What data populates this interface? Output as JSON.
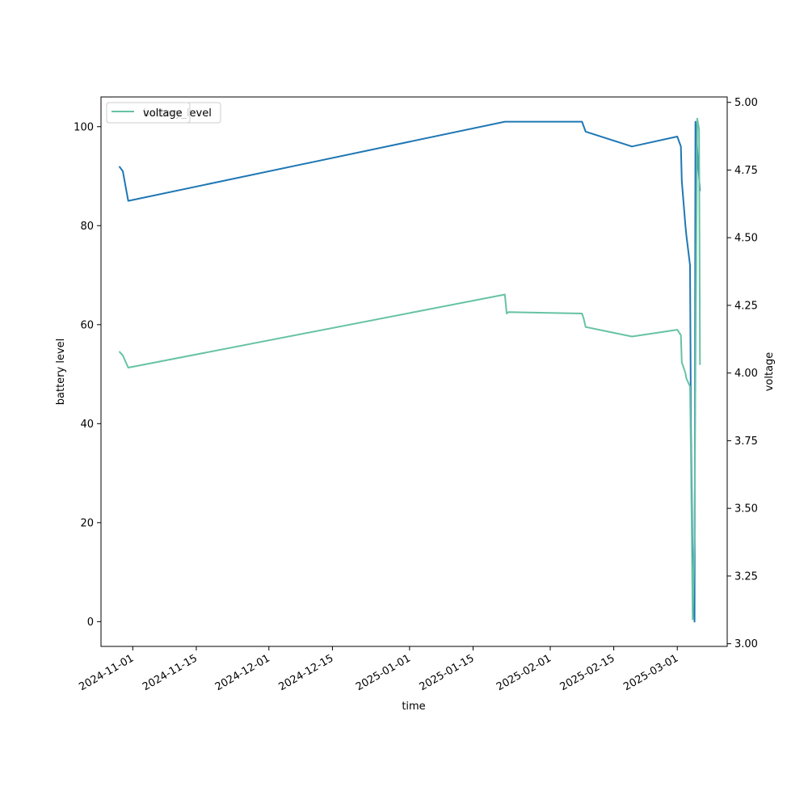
{
  "chart_data": {
    "type": "line",
    "xlabel": "time",
    "ylabel_left": "battery level",
    "ylabel_right": "voltage",
    "x_ticks": [
      "2024-11-01",
      "2024-11-15",
      "2024-12-01",
      "2024-12-15",
      "2025-01-01",
      "2025-01-15",
      "2025-02-01",
      "2025-02-15",
      "2025-03-01"
    ],
    "y_left_ticks": [
      "0",
      "20",
      "40",
      "60",
      "80",
      "100"
    ],
    "y_right_ticks": [
      "3.00",
      "3.25",
      "3.50",
      "3.75",
      "4.00",
      "4.25",
      "4.50",
      "4.75",
      "5.00"
    ],
    "xlim": [
      "2024-10-25",
      "2025-03-12"
    ],
    "ylim_left": [
      -5,
      106
    ],
    "ylim_right": [
      2.99,
      5.02
    ],
    "grid": false,
    "legend_placement": "upper-left",
    "legend_entries_overlapping": [
      "battery_level",
      "voltage"
    ],
    "series": [
      {
        "name": "battery_level",
        "axis": "left",
        "color": "#1f77b4",
        "points": [
          [
            "2024-10-29",
            92
          ],
          [
            "2024-10-29",
            91
          ],
          [
            "2024-10-31",
            85
          ],
          [
            "2025-01-22",
            101
          ],
          [
            "2025-02-08",
            101
          ],
          [
            "2025-02-08",
            99
          ],
          [
            "2025-02-19",
            96
          ],
          [
            "2025-03-01",
            98
          ],
          [
            "2025-03-01",
            96
          ],
          [
            "2025-03-02",
            89
          ],
          [
            "2025-03-02",
            80
          ],
          [
            "2025-03-03",
            78
          ],
          [
            "2025-03-03",
            72
          ],
          [
            "2025-03-04",
            40
          ],
          [
            "2025-03-04",
            10
          ],
          [
            "2025-03-04",
            0
          ],
          [
            "2025-03-05",
            101
          ],
          [
            "2025-03-06",
            87
          ]
        ]
      },
      {
        "name": "voltage",
        "axis": "right",
        "color": "#66c2a5",
        "points": [
          [
            "2024-10-29",
            4.08
          ],
          [
            "2024-10-29",
            4.065
          ],
          [
            "2024-10-31",
            4.02
          ],
          [
            "2025-01-22",
            4.29
          ],
          [
            "2025-01-22",
            4.22
          ],
          [
            "2025-01-22",
            4.225
          ],
          [
            "2025-02-08",
            4.22
          ],
          [
            "2025-02-08",
            4.2
          ],
          [
            "2025-02-08",
            4.17
          ],
          [
            "2025-02-19",
            4.135
          ],
          [
            "2025-03-01",
            4.16
          ],
          [
            "2025-03-01",
            4.14
          ],
          [
            "2025-03-02",
            4.04
          ],
          [
            "2025-03-02",
            4.0
          ],
          [
            "2025-03-03",
            3.98
          ],
          [
            "2025-03-03",
            3.95
          ],
          [
            "2025-03-04",
            3.7
          ],
          [
            "2025-03-04",
            3.09
          ],
          [
            "2025-03-04",
            3.4
          ],
          [
            "2025-03-05",
            4.0
          ],
          [
            "2025-03-05",
            4.94
          ],
          [
            "2025-03-05",
            4.9
          ],
          [
            "2025-03-06",
            4.03
          ]
        ]
      }
    ]
  }
}
